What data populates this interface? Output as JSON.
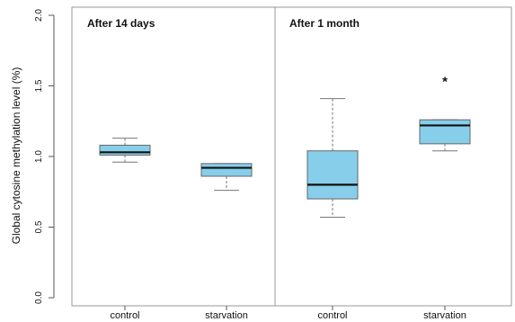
{
  "chart_data": {
    "type": "box",
    "ylabel": "Global cytosine methylation level (%)",
    "ylim": [
      0.0,
      2.0
    ],
    "yticks": [
      "0.0",
      "0.5",
      "1.0",
      "1.5",
      "2.0"
    ],
    "panels": [
      {
        "title": "After 14 days"
      },
      {
        "title": "After 1 month"
      }
    ],
    "categories": [
      "control",
      "starvation",
      "control",
      "starvation"
    ],
    "boxes": [
      {
        "category": "control",
        "panel": 0,
        "min": 0.96,
        "q1": 1.01,
        "median": 1.03,
        "q3": 1.08,
        "max": 1.13
      },
      {
        "category": "starvation",
        "panel": 0,
        "min": 0.76,
        "q1": 0.86,
        "median": 0.92,
        "q3": 0.95,
        "max": 0.95
      },
      {
        "category": "control",
        "panel": 1,
        "min": 0.57,
        "q1": 0.7,
        "median": 0.8,
        "q3": 1.04,
        "max": 1.41
      },
      {
        "category": "starvation",
        "panel": 1,
        "min": 1.04,
        "q1": 1.09,
        "median": 1.22,
        "q3": 1.26,
        "max": 1.26
      }
    ],
    "annotations": [
      {
        "text": "*",
        "box": 3,
        "y": 1.55
      }
    ],
    "box_color": "#87ceeb",
    "grid": false,
    "legend": "none"
  }
}
